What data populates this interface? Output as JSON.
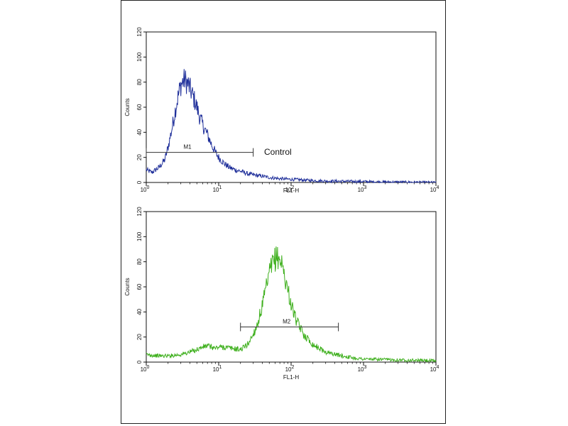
{
  "chart_data": [
    {
      "type": "line",
      "title": "",
      "xlabel": "FL1-H",
      "ylabel": "Counts",
      "x_scale": "log",
      "xlim": [
        1,
        10000
      ],
      "ylim": [
        0,
        120
      ],
      "y_ticks": [
        "0",
        "20",
        "40",
        "60",
        "80",
        "100",
        "120"
      ],
      "x_ticks": [
        {
          "base": "10",
          "exp": "0"
        },
        {
          "base": "10",
          "exp": "1"
        },
        {
          "base": "10",
          "exp": "2"
        },
        {
          "base": "10",
          "exp": "3"
        },
        {
          "base": "10",
          "exp": "4"
        }
      ],
      "grid": false,
      "line_color": "#1f2f9a",
      "series": [
        {
          "x": [
            1,
            1.2,
            1.5,
            1.8,
            2.0,
            2.3,
            2.6,
            3.0,
            3.4,
            3.8,
            4.2,
            4.6,
            5.0,
            5.5,
            6.0,
            7.0,
            8.0,
            9.0,
            10,
            12,
            14,
            17,
            20,
            25,
            30,
            40,
            50,
            70,
            100,
            150,
            200,
            300,
            500,
            800,
            1000,
            1500,
            2000,
            3000,
            5000,
            10000
          ],
          "y": [
            10,
            8,
            12,
            18,
            28,
            45,
            62,
            78,
            82,
            78,
            72,
            66,
            60,
            52,
            46,
            38,
            30,
            24,
            20,
            15,
            12,
            10,
            9,
            7,
            6,
            5,
            4,
            3,
            2.5,
            2,
            1.5,
            1.2,
            1,
            0.8,
            0.7,
            0.5,
            0.4,
            0.3,
            0.2,
            0
          ]
        }
      ],
      "marker": {
        "label": "M1",
        "x_start": 1,
        "x_end": 30,
        "y": 24
      },
      "annotation": "Control"
    },
    {
      "type": "line",
      "title": "",
      "xlabel": "FL1-H",
      "ylabel": "Counts",
      "x_scale": "log",
      "xlim": [
        1,
        10000
      ],
      "ylim": [
        0,
        120
      ],
      "y_ticks": [
        "0",
        "20",
        "40",
        "60",
        "80",
        "100",
        "120"
      ],
      "x_ticks": [
        {
          "base": "10",
          "exp": "0"
        },
        {
          "base": "10",
          "exp": "1"
        },
        {
          "base": "10",
          "exp": "2"
        },
        {
          "base": "10",
          "exp": "3"
        },
        {
          "base": "10",
          "exp": "4"
        }
      ],
      "grid": false,
      "line_color": "#3fb01e",
      "series": [
        {
          "x": [
            1,
            1.5,
            2,
            3,
            4,
            5,
            6,
            7,
            8,
            9,
            10,
            12,
            15,
            20,
            25,
            30,
            35,
            40,
            45,
            50,
            55,
            60,
            65,
            70,
            75,
            80,
            90,
            100,
            120,
            150,
            200,
            300,
            500,
            800,
            1000,
            2000,
            5000,
            10000
          ],
          "y": [
            6,
            5,
            5,
            6,
            8,
            10,
            12,
            13,
            12,
            11,
            12,
            12,
            11,
            10,
            14,
            22,
            32,
            45,
            58,
            70,
            78,
            82,
            84,
            82,
            78,
            70,
            58,
            46,
            32,
            22,
            14,
            8,
            5,
            3,
            2.5,
            2,
            1.5,
            1
          ]
        }
      ],
      "marker": {
        "label": "M2",
        "x_start": 20,
        "x_end": 450,
        "y": 28
      },
      "annotation": ""
    }
  ]
}
